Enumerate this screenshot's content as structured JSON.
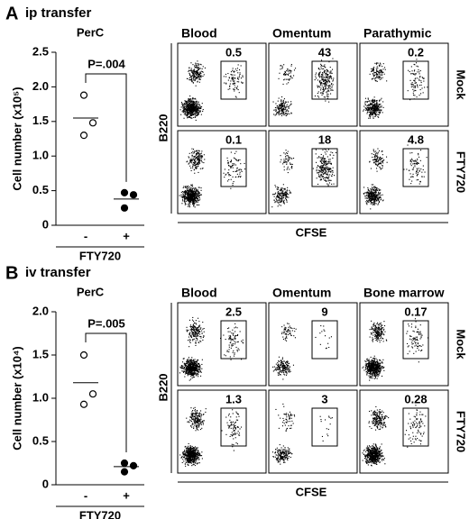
{
  "chart_data": [
    {
      "type": "scatter",
      "panel": "A",
      "title": "ip transfer",
      "subtitle": "PerC",
      "y_label": "Cell number (x10⁵)",
      "x_label": "FTY720",
      "annotation": "P=.004",
      "categories": [
        "-",
        "+"
      ],
      "values": [
        [
          1.88,
          1.48,
          1.3
        ],
        [
          0.47,
          0.44,
          0.25
        ]
      ],
      "means": [
        1.55,
        0.38
      ],
      "markers": [
        "open",
        "filled"
      ],
      "ylim": [
        0,
        2.5
      ],
      "yticks": [
        0,
        0.5,
        {
          "value": 1,
          "label": "1.0"
        },
        1.5,
        {
          "value": 2,
          "label": "2.0"
        },
        2.5
      ]
    },
    {
      "type": "scatter",
      "panel": "B",
      "title": "iv transfer",
      "subtitle": "PerC",
      "y_label": "Cell number (x10⁴)",
      "x_label": "FTY720",
      "annotation": "P=.005",
      "categories": [
        "-",
        "+"
      ],
      "values": [
        [
          1.5,
          1.05,
          0.93
        ],
        [
          0.25,
          0.22,
          0.15
        ]
      ],
      "means": [
        1.18,
        0.21
      ],
      "markers": [
        "open",
        "filled"
      ],
      "ylim": [
        0,
        2
      ],
      "yticks": [
        0,
        0.5,
        {
          "value": 1,
          "label": "1.0"
        },
        1.5,
        {
          "value": 2,
          "label": "2.0"
        }
      ]
    }
  ],
  "flow": [
    {
      "columns": [
        "Blood",
        "Omentum",
        "Parathymic"
      ],
      "rows": [
        "Mock",
        "FTY720"
      ],
      "percents": [
        [
          0.5,
          43,
          0.2
        ],
        [
          0.1,
          18,
          4.8
        ]
      ],
      "x_label": "CFSE",
      "y_label": "B220"
    },
    {
      "columns": [
        "Blood",
        "Omentum",
        "Bone marrow"
      ],
      "rows": [
        "Mock",
        "FTY720"
      ],
      "percents": [
        [
          2.5,
          9,
          0.17
        ],
        [
          1.3,
          3,
          0.28
        ]
      ],
      "x_label": "CFSE",
      "y_label": "B220"
    }
  ]
}
